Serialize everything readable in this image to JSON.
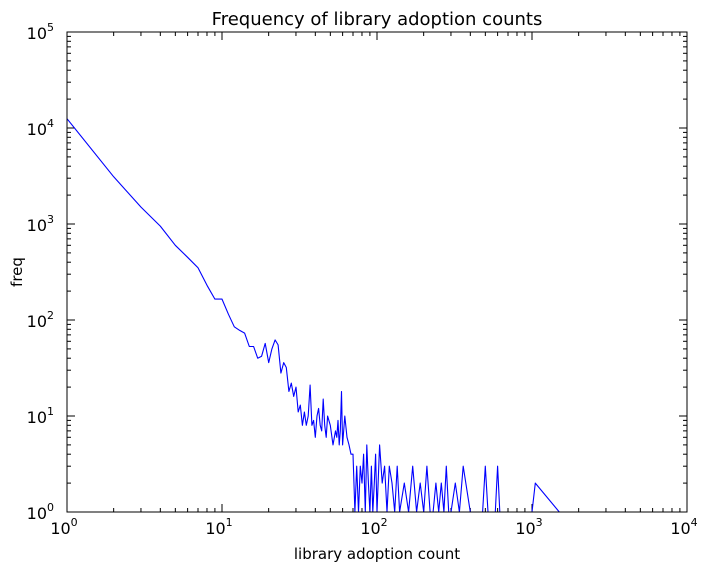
{
  "chart_data": {
    "type": "line",
    "title": "Frequency of library adoption counts",
    "xlabel": "library adoption count",
    "ylabel": "freq",
    "xscale": "log",
    "yscale": "log",
    "xlim": [
      1,
      10000
    ],
    "ylim": [
      1,
      100000
    ],
    "grid": false,
    "legend": "none",
    "x_tick_labels": [
      {
        "base": "10",
        "exp": "0"
      },
      {
        "base": "10",
        "exp": "1"
      },
      {
        "base": "10",
        "exp": "2"
      },
      {
        "base": "10",
        "exp": "3"
      },
      {
        "base": "10",
        "exp": "4"
      }
    ],
    "y_tick_labels": [
      {
        "base": "10",
        "exp": "0"
      },
      {
        "base": "10",
        "exp": "1"
      },
      {
        "base": "10",
        "exp": "2"
      },
      {
        "base": "10",
        "exp": "3"
      },
      {
        "base": "10",
        "exp": "4"
      },
      {
        "base": "10",
        "exp": "5"
      }
    ],
    "series": [
      {
        "color": "#0000ff",
        "x": [
          1,
          2,
          3,
          4,
          5,
          6,
          7,
          8,
          9,
          10,
          11,
          12,
          13,
          14,
          15,
          16,
          17,
          18,
          19,
          20,
          21,
          22,
          23,
          24,
          25,
          26,
          27,
          28,
          29,
          30,
          31,
          32,
          33,
          34,
          35,
          36,
          37,
          38,
          39,
          40,
          41,
          42,
          43,
          44,
          45,
          46,
          47,
          48,
          50,
          52,
          54,
          55,
          56,
          57,
          58,
          59,
          60,
          62,
          64,
          66,
          68,
          70,
          72,
          74,
          76,
          78,
          80,
          82,
          84,
          86,
          88,
          90,
          92,
          94,
          96,
          98,
          100,
          104,
          108,
          112,
          116,
          120,
          125,
          130,
          135,
          140,
          150,
          160,
          170,
          180,
          190,
          200,
          210,
          220,
          230,
          240,
          250,
          260,
          270,
          280,
          290,
          300,
          320,
          340,
          360,
          400,
          480,
          500,
          520,
          580,
          600,
          620,
          700,
          800,
          1000,
          1050,
          1500,
          2000,
          3000,
          5000,
          8000
        ],
        "y": [
          12500,
          3100,
          1500,
          950,
          600,
          450,
          350,
          230,
          165,
          165,
          115,
          85,
          78,
          73,
          53,
          53,
          40,
          42,
          57,
          36,
          50,
          62,
          55,
          28,
          36,
          32,
          18,
          22,
          16,
          20,
          11,
          13,
          8,
          11,
          8,
          10,
          21,
          8,
          9,
          6,
          10,
          12,
          8,
          7,
          15,
          8,
          6,
          10,
          8,
          5,
          7,
          6,
          9,
          5,
          7,
          18,
          5,
          10,
          6,
          5,
          4,
          4,
          1,
          3,
          1,
          3,
          2,
          4,
          1,
          5,
          2,
          1,
          3,
          1,
          2,
          4,
          1,
          5,
          2,
          3,
          1,
          3,
          2,
          1,
          3,
          1,
          2,
          1,
          3,
          1,
          2,
          1,
          3,
          1,
          1,
          2,
          1,
          2,
          1,
          3,
          1,
          1,
          2,
          1,
          3,
          1,
          1,
          3,
          1,
          1,
          3,
          1,
          1,
          1,
          1,
          2,
          1,
          1,
          1,
          1,
          1
        ]
      }
    ]
  }
}
